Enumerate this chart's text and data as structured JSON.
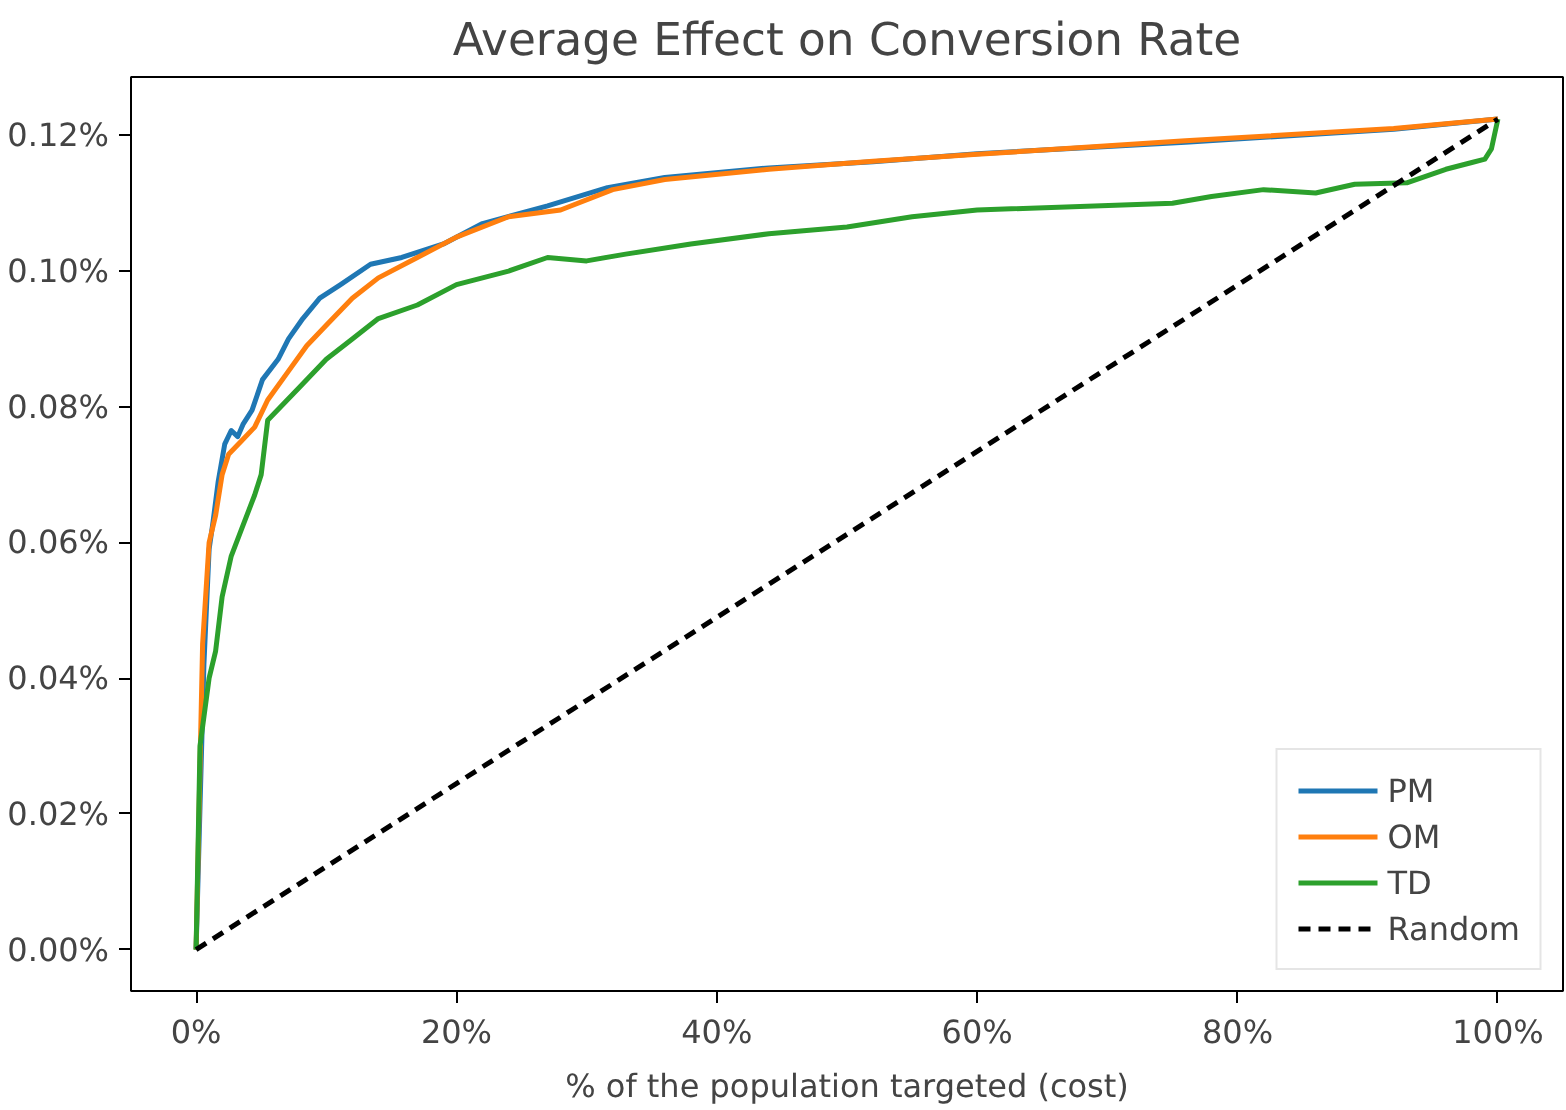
{
  "chart_data": {
    "type": "line",
    "title": "Average Effect on Conversion Rate",
    "xlabel": "% of the population targeted (cost)",
    "xlim": [
      -5,
      105
    ],
    "ylim": [
      -0.0061,
      0.1286
    ],
    "xticks": [
      {
        "value": 0,
        "label": "0%"
      },
      {
        "value": 20,
        "label": "20%"
      },
      {
        "value": 40,
        "label": "40%"
      },
      {
        "value": 60,
        "label": "60%"
      },
      {
        "value": 80,
        "label": "80%"
      },
      {
        "value": 100,
        "label": "100%"
      }
    ],
    "yticks": [
      {
        "value": 0,
        "label": "0.00%"
      },
      {
        "value": 0.02,
        "label": "0.02%"
      },
      {
        "value": 0.04,
        "label": "0.04%"
      },
      {
        "value": 0.06,
        "label": "0.06%"
      },
      {
        "value": 0.08,
        "label": "0.08%"
      },
      {
        "value": 0.1,
        "label": "0.10%"
      },
      {
        "value": 0.12,
        "label": "0.12%"
      }
    ],
    "grid": false,
    "legend": "bottom right",
    "series": [
      {
        "name": "PM",
        "color": "#1f77b4",
        "line_style": "solid",
        "x": [
          0,
          0.3,
          0.6,
          1,
          1.3,
          1.7,
          2.2,
          2.7,
          3.2,
          3.6,
          4.3,
          5.1,
          6.3,
          7.1,
          8.2,
          9.5,
          11.1,
          13.4,
          15.8,
          19,
          22,
          27,
          31.6,
          36,
          44,
          52,
          60,
          76,
          92,
          100
        ],
        "values": [
          0,
          0.021,
          0.042,
          0.059,
          0.063,
          0.069,
          0.0745,
          0.0765,
          0.0756,
          0.0774,
          0.0795,
          0.084,
          0.087,
          0.09,
          0.093,
          0.096,
          0.098,
          0.101,
          0.102,
          0.104,
          0.107,
          0.1096,
          0.1123,
          0.1138,
          0.1152,
          0.1161,
          0.1173,
          0.119,
          0.1209,
          0.1224
        ]
      },
      {
        "name": "OM",
        "color": "#ff7f0e",
        "line_style": "solid",
        "x": [
          0,
          0.5,
          1,
          1.5,
          2,
          2.5,
          3,
          3.5,
          4.5,
          5.5,
          7,
          8.5,
          10,
          12,
          14,
          17,
          20,
          24,
          28,
          32,
          36,
          44,
          52,
          60,
          76,
          92,
          100
        ],
        "values": [
          0,
          0.045,
          0.06,
          0.064,
          0.07,
          0.073,
          0.074,
          0.075,
          0.077,
          0.081,
          0.085,
          0.089,
          0.092,
          0.096,
          0.099,
          0.102,
          0.105,
          0.108,
          0.109,
          0.112,
          0.1135,
          0.115,
          0.1162,
          0.1172,
          0.1192,
          0.121,
          0.1224
        ]
      },
      {
        "name": "TD",
        "color": "#2ca02c",
        "line_style": "solid",
        "x": [
          0,
          0.3,
          1,
          1.5,
          2,
          2.7,
          3.5,
          4.5,
          5,
          5.5,
          6.5,
          8,
          10,
          12,
          14,
          17,
          20,
          24,
          27,
          30,
          33,
          38,
          44,
          50,
          55,
          60,
          75,
          78,
          82,
          86,
          89,
          93,
          96,
          98,
          99,
          99.5,
          100
        ],
        "values": [
          0,
          0.03,
          0.04,
          0.044,
          0.052,
          0.058,
          0.062,
          0.067,
          0.07,
          0.078,
          0.08,
          0.083,
          0.087,
          0.09,
          0.093,
          0.095,
          0.098,
          0.1,
          0.102,
          0.1015,
          0.1025,
          0.104,
          0.1055,
          0.1065,
          0.108,
          0.109,
          0.11,
          0.111,
          0.112,
          0.1115,
          0.1128,
          0.113,
          0.115,
          0.116,
          0.1165,
          0.118,
          0.1224
        ]
      },
      {
        "name": "Random",
        "color": "#000000",
        "line_style": "dashed",
        "x": [
          0,
          100
        ],
        "values": [
          0,
          0.1224
        ]
      }
    ]
  }
}
